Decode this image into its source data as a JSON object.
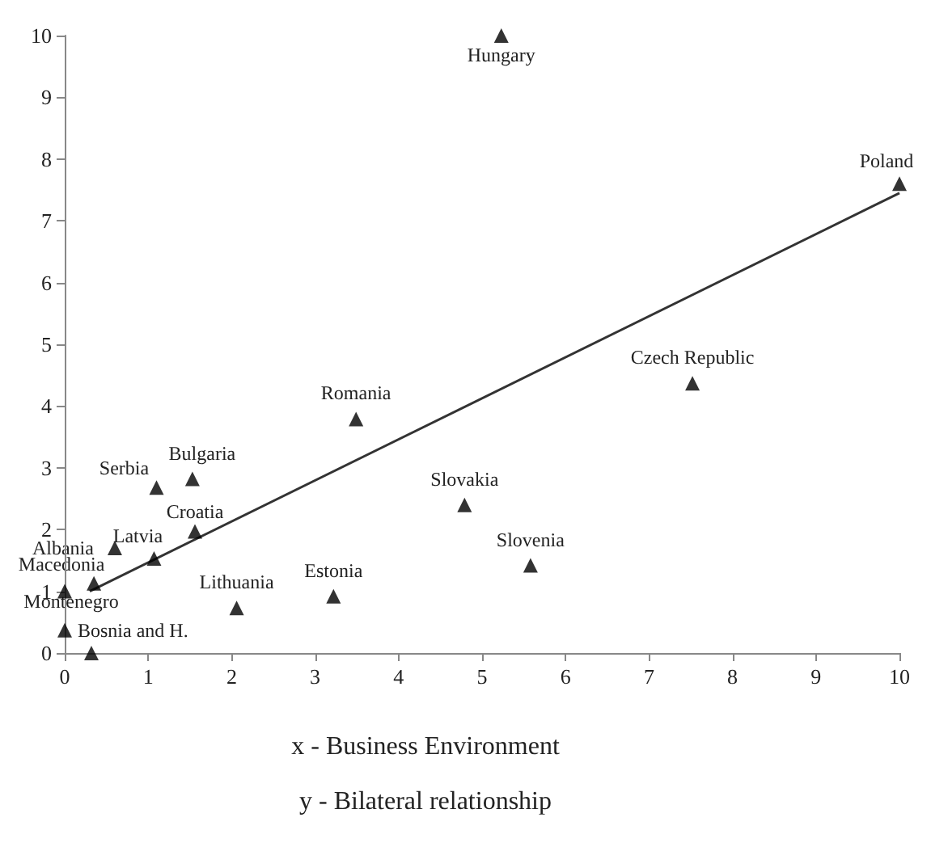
{
  "chart_data": {
    "type": "scatter",
    "grid": false,
    "xlim": [
      0,
      10
    ],
    "xticks": [
      0,
      1,
      2,
      3,
      4,
      5,
      6,
      7,
      8,
      9,
      10
    ],
    "ylim": [
      0,
      10
    ],
    "yticks": [
      0,
      1,
      2,
      3,
      4,
      5,
      6,
      7,
      8,
      9,
      10
    ],
    "series": [
      {
        "marker": "triangle",
        "color": "#000000",
        "x": [
          5.23,
          10,
          7.52,
          3.49,
          4.79,
          5.58,
          3.22,
          2.06,
          1.07,
          1.56,
          1.53,
          1.1,
          0.6,
          0.35,
          0,
          0,
          0.32
        ],
        "values": [
          10,
          7.6,
          4.37,
          3.79,
          2.4,
          1.42,
          0.92,
          0.73,
          1.53,
          1.97,
          2.82,
          2.68,
          1.7,
          1.13,
          1.0,
          0.37,
          0
        ]
      },
      {
        "type": "line",
        "color": "#333333",
        "x": [
          0.3,
          10
        ],
        "values": [
          1.0,
          7.45
        ]
      }
    ],
    "annotations": [
      {
        "text": "Hungary",
        "x": 5.23,
        "y": 10
      },
      {
        "text": "Poland",
        "x": 10,
        "y": 7.6
      },
      {
        "text": "Czech Republic",
        "x": 7.52,
        "y": 4.37
      },
      {
        "text": "Romania",
        "x": 3.49,
        "y": 3.79
      },
      {
        "text": "Slovakia",
        "x": 4.79,
        "y": 2.4
      },
      {
        "text": "Slovenia",
        "x": 5.58,
        "y": 1.42
      },
      {
        "text": "Estonia",
        "x": 3.22,
        "y": 0.92
      },
      {
        "text": "Lithuania",
        "x": 2.06,
        "y": 0.73
      },
      {
        "text": "Latvia",
        "x": 1.07,
        "y": 1.53
      },
      {
        "text": "Croatia",
        "x": 1.56,
        "y": 1.97
      },
      {
        "text": "Bulgaria",
        "x": 1.53,
        "y": 2.82
      },
      {
        "text": "Serbia",
        "x": 1.1,
        "y": 2.68
      },
      {
        "text": "Albania",
        "x": 0.6,
        "y": 1.7
      },
      {
        "text": "Macedonia",
        "x": 0.35,
        "y": 1.13
      },
      {
        "text": "Montenegro",
        "x": 0,
        "y": 1.0
      },
      {
        "text": "Bosnia and H.",
        "x": 0,
        "y": 0.37
      },
      "x - Business Environment",
      "y - Bilateral relationship"
    ]
  }
}
